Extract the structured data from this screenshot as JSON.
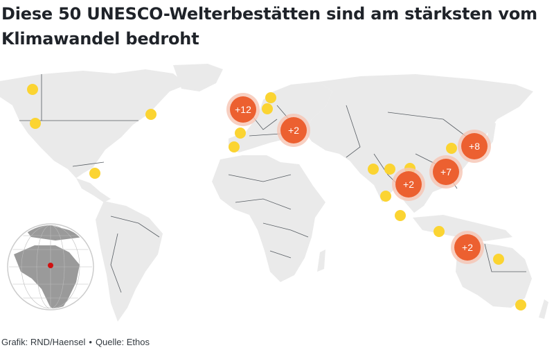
{
  "title": "Diese 50 UNESCO-Welterbestätten sind am stärksten vom Klimawandel bedroht",
  "credit": {
    "grafik": "Grafik: RND/Haensel",
    "separator": "•",
    "quelle": "Quelle: Ethos"
  },
  "colors": {
    "land": "#eaeaea",
    "borders": "#555b61",
    "site": "#fbd432",
    "cluster": "#ec6030",
    "cluster_halo": "#f6c4b3",
    "globe_land": "#9a9a9a",
    "globe_marker": "#d01010"
  },
  "clusters": [
    {
      "name": "europe-west",
      "label": "+12"
    },
    {
      "name": "mediterranean",
      "label": "+2"
    },
    {
      "name": "south-asia",
      "label": "+2"
    },
    {
      "name": "southeast-asia",
      "label": "+7"
    },
    {
      "name": "east-asia",
      "label": "+8"
    },
    {
      "name": "oceania",
      "label": "+2"
    }
  ],
  "single_sites": [
    "alaska",
    "canada-west",
    "canada-east",
    "usa-west",
    "caribbean",
    "scandinavia",
    "baltic",
    "iberia",
    "portugal",
    "arabia",
    "india-north",
    "indochina",
    "china-coast",
    "india-west",
    "sri-lanka",
    "indonesia",
    "australia-north",
    "australia-east"
  ],
  "locator": {
    "icon": "globe-locator-icon",
    "marker": "red-dot-marker"
  }
}
